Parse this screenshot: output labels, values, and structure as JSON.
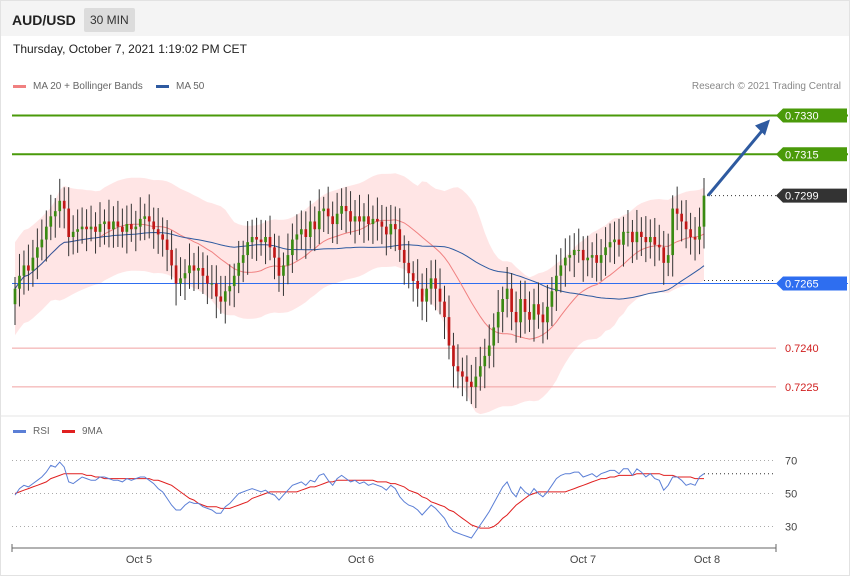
{
  "header": {
    "symbol": "AUD/USD",
    "interval": "30 MIN"
  },
  "timestamp": "Thursday, October 7, 2021 1:19:02 PM CET",
  "copyright": "Research © 2021 Trading Central",
  "legend_main": [
    {
      "label": "MA 20 + Bollinger Bands",
      "color": "#f08080"
    },
    {
      "label": "MA 50",
      "color": "#2e5aa0"
    }
  ],
  "legend_rsi": [
    {
      "label": "RSI",
      "color": "#5b7fd6"
    },
    {
      "label": "9MA",
      "color": "#e02020"
    }
  ],
  "colors": {
    "green": "#4a9a0a",
    "blue": "#2e6ef0",
    "red": "#e06060",
    "dark": "#333333",
    "up": "#3a8a12",
    "down": "#c01818",
    "band": "#ffe0e0",
    "arrow": "#2e5aa0"
  },
  "chart_data": [
    {
      "type": "candlestick",
      "ylim": [
        0.7218,
        0.7336
      ],
      "x_ticks": [
        "Oct 5",
        "Oct 6",
        "Oct 7",
        "Oct 8"
      ],
      "levels": [
        {
          "value": 0.733,
          "label": "0.7330",
          "kind": "resistance"
        },
        {
          "value": 0.7315,
          "label": "0.7315",
          "kind": "resistance"
        },
        {
          "value": 0.7299,
          "label": "0.7299",
          "kind": "current"
        },
        {
          "value": 0.7265,
          "label": "0.7265",
          "kind": "pivot"
        },
        {
          "value": 0.724,
          "label": "0.7240",
          "kind": "support"
        },
        {
          "value": 0.7225,
          "label": "0.7225",
          "kind": "support"
        }
      ],
      "close": [
        0.7263,
        0.7268,
        0.7272,
        0.727,
        0.7275,
        0.7279,
        0.7282,
        0.7287,
        0.7291,
        0.7293,
        0.7297,
        0.7294,
        0.7283,
        0.7285,
        0.7286,
        0.7287,
        0.7286,
        0.7287,
        0.7285,
        0.7288,
        0.7289,
        0.7286,
        0.7289,
        0.7287,
        0.7285,
        0.7288,
        0.7286,
        0.7287,
        0.729,
        0.7291,
        0.7289,
        0.7286,
        0.7284,
        0.7282,
        0.7278,
        0.7272,
        0.7265,
        0.7267,
        0.7269,
        0.7272,
        0.727,
        0.7271,
        0.7268,
        0.7265,
        0.7265,
        0.726,
        0.7258,
        0.7262,
        0.7264,
        0.7268,
        0.7273,
        0.7276,
        0.7281,
        0.7283,
        0.7282,
        0.7281,
        0.7283,
        0.7279,
        0.7275,
        0.7268,
        0.7272,
        0.7276,
        0.7282,
        0.7284,
        0.7286,
        0.7283,
        0.7289,
        0.7286,
        0.7293,
        0.7294,
        0.7291,
        0.7288,
        0.7292,
        0.7295,
        0.7293,
        0.7289,
        0.7291,
        0.7289,
        0.7291,
        0.7288,
        0.729,
        0.7289,
        0.7287,
        0.7284,
        0.7288,
        0.7286,
        0.7278,
        0.7273,
        0.7269,
        0.7266,
        0.7263,
        0.7258,
        0.7263,
        0.7267,
        0.7263,
        0.7258,
        0.7252,
        0.7241,
        0.7233,
        0.7231,
        0.7229,
        0.7227,
        0.7225,
        0.7229,
        0.7233,
        0.7237,
        0.7241,
        0.7248,
        0.7254,
        0.7259,
        0.7263,
        0.7254,
        0.725,
        0.7259,
        0.7254,
        0.7251,
        0.7257,
        0.7253,
        0.725,
        0.7256,
        0.7262,
        0.7268,
        0.7272,
        0.7275,
        0.7276,
        0.7278,
        0.7278,
        0.7274,
        0.7275,
        0.7276,
        0.7273,
        0.7276,
        0.7279,
        0.7281,
        0.7282,
        0.728,
        0.7285,
        0.7285,
        0.7281,
        0.7285,
        0.7283,
        0.7281,
        0.7283,
        0.728,
        0.7279,
        0.7273,
        0.7276,
        0.7294,
        0.7292,
        0.7289,
        0.7286,
        0.7283,
        0.7282,
        0.7287,
        0.7299
      ]
    },
    {
      "type": "line",
      "name": "RSI",
      "ylim": [
        20,
        80
      ],
      "y_ticks": [
        70,
        50,
        30
      ],
      "values": [
        49,
        53,
        55,
        54,
        56,
        58,
        60,
        63,
        67,
        66,
        69,
        66,
        57,
        56,
        58,
        60,
        59,
        58,
        58,
        60,
        60,
        59,
        58,
        58,
        57,
        59,
        58,
        59,
        60,
        60,
        58,
        56,
        53,
        51,
        47,
        43,
        40,
        40,
        43,
        45,
        44,
        44,
        42,
        41,
        40,
        38,
        38,
        42,
        44,
        47,
        50,
        51,
        52,
        53,
        52,
        51,
        52,
        50,
        49,
        46,
        49,
        52,
        55,
        56,
        57,
        55,
        58,
        57,
        61,
        62,
        58,
        55,
        59,
        61,
        59,
        57,
        58,
        56,
        57,
        55,
        56,
        55,
        54,
        52,
        55,
        53,
        48,
        45,
        43,
        42,
        40,
        37,
        40,
        43,
        41,
        38,
        35,
        30,
        27,
        26,
        25,
        24,
        23,
        27,
        31,
        35,
        39,
        44,
        49,
        54,
        57,
        51,
        48,
        54,
        51,
        49,
        53,
        50,
        48,
        51,
        55,
        59,
        61,
        62,
        62,
        63,
        63,
        60,
        61,
        62,
        60,
        62,
        63,
        64,
        64,
        62,
        65,
        65,
        61,
        65,
        63,
        60,
        62,
        59,
        58,
        52,
        55,
        60,
        60,
        58,
        55,
        56,
        55,
        60,
        62
      ]
    },
    {
      "type": "line",
      "name": "9MA",
      "values": [
        50,
        51,
        52,
        53,
        54,
        55,
        56,
        57,
        59,
        60,
        61,
        62,
        62,
        62,
        62,
        62,
        61,
        61,
        60,
        60,
        59,
        59,
        59,
        59,
        59,
        59,
        59,
        59,
        59,
        59,
        59,
        58,
        58,
        57,
        56,
        55,
        53,
        51,
        49,
        47,
        46,
        44,
        43,
        42,
        42,
        42,
        41,
        41,
        41,
        42,
        43,
        44,
        45,
        47,
        48,
        49,
        50,
        51,
        51,
        51,
        51,
        51,
        51,
        51,
        52,
        53,
        54,
        54,
        55,
        56,
        57,
        57,
        58,
        58,
        58,
        58,
        58,
        58,
        58,
        58,
        58,
        57,
        57,
        57,
        56,
        56,
        55,
        54,
        52,
        51,
        50,
        48,
        47,
        45,
        44,
        43,
        42,
        40,
        39,
        37,
        35,
        33,
        31,
        30,
        29,
        29,
        29,
        30,
        32,
        35,
        37,
        40,
        43,
        45,
        47,
        49,
        50,
        51,
        51,
        51,
        51,
        51,
        51,
        51,
        52,
        53,
        54,
        55,
        56,
        57,
        58,
        59,
        59,
        60,
        60,
        61,
        61,
        61,
        61,
        62,
        62,
        62,
        62,
        62,
        62,
        61,
        61,
        61,
        60,
        60,
        60,
        60,
        59,
        59,
        59
      ]
    }
  ]
}
